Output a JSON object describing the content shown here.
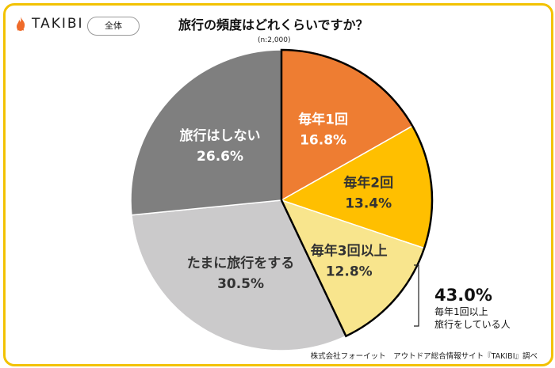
{
  "header": {
    "logo_text": "TAKIBI",
    "logo_icon": "flame-icon",
    "scope_label": "全体",
    "title": "旅行の頻度はどれくらいですか？",
    "sample": "(n:2,000)"
  },
  "chart_data": {
    "type": "pie",
    "title": "旅行の頻度はどれくらいですか？",
    "slices": [
      {
        "label": "毎年1回",
        "value": 16.8,
        "value_text": "16.8%",
        "color": "#ee7d32"
      },
      {
        "label": "毎年2回",
        "value": 13.4,
        "value_text": "13.4%",
        "color": "#ffbf00"
      },
      {
        "label": "毎年3回以上",
        "value": 12.8,
        "value_text": "12.8%",
        "color": "#f8e58d"
      },
      {
        "label": "たまに旅行をする",
        "value": 30.5,
        "value_text": "30.5%",
        "color": "#cbcacb"
      },
      {
        "label": "旅行はしない",
        "value": 26.6,
        "value_text": "26.6%",
        "color": "#7f7f7f"
      }
    ],
    "highlight": {
      "value_text": "43.0%",
      "line1": "毎年1回以上",
      "line2": "旅行をしている人",
      "outline_color": "#000000"
    }
  },
  "footer": {
    "source": "株式会社フォーイット　アウトドア総合情報サイト『TAKIBI』調べ"
  }
}
